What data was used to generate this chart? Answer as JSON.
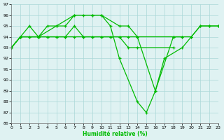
{
  "xlabel": "Humidité relative (%)",
  "background_color": "#dff2f2",
  "grid_color": "#aad8d8",
  "line_color": "#00bb00",
  "ylim": [
    86,
    97
  ],
  "xlim": [
    0,
    23
  ],
  "yticks": [
    86,
    87,
    88,
    89,
    90,
    91,
    92,
    93,
    94,
    95,
    96,
    97
  ],
  "xticks": [
    0,
    1,
    2,
    3,
    4,
    5,
    6,
    7,
    8,
    9,
    10,
    11,
    12,
    13,
    14,
    15,
    16,
    17,
    18,
    19,
    20,
    21,
    22,
    23
  ],
  "series": [
    {
      "x": [
        0,
        1,
        2,
        3,
        4,
        5,
        6,
        7,
        8,
        9,
        10,
        11,
        12,
        14,
        15,
        16,
        17,
        19,
        20,
        21,
        22,
        23
      ],
      "y": [
        93,
        94,
        95,
        94,
        95,
        95,
        95,
        96,
        96,
        96,
        96,
        95,
        92,
        88,
        87,
        89,
        92,
        93,
        94,
        95,
        95,
        95
      ]
    },
    {
      "x": [
        0,
        1,
        3,
        5,
        7,
        9,
        10,
        12,
        13,
        14,
        16,
        18,
        19,
        20,
        21,
        22,
        23
      ],
      "y": [
        93,
        94,
        94,
        95,
        96,
        96,
        96,
        95,
        95,
        94,
        89,
        94,
        94,
        94,
        95,
        95,
        95
      ]
    },
    {
      "x": [
        0,
        1,
        2,
        3,
        4,
        5,
        6,
        7,
        8,
        9,
        10,
        11,
        12,
        13,
        14,
        18,
        19
      ],
      "y": [
        93,
        94,
        94,
        94,
        94,
        94,
        94,
        95,
        94,
        94,
        94,
        94,
        94,
        94,
        94,
        94,
        94
      ]
    },
    {
      "x": [
        0,
        1,
        2,
        3,
        4,
        5,
        6,
        7,
        8,
        9,
        10,
        11,
        12,
        13,
        14,
        18
      ],
      "y": [
        93,
        94,
        94,
        94,
        94,
        94,
        94,
        94,
        94,
        94,
        94,
        94,
        94,
        93,
        93,
        93
      ]
    }
  ]
}
